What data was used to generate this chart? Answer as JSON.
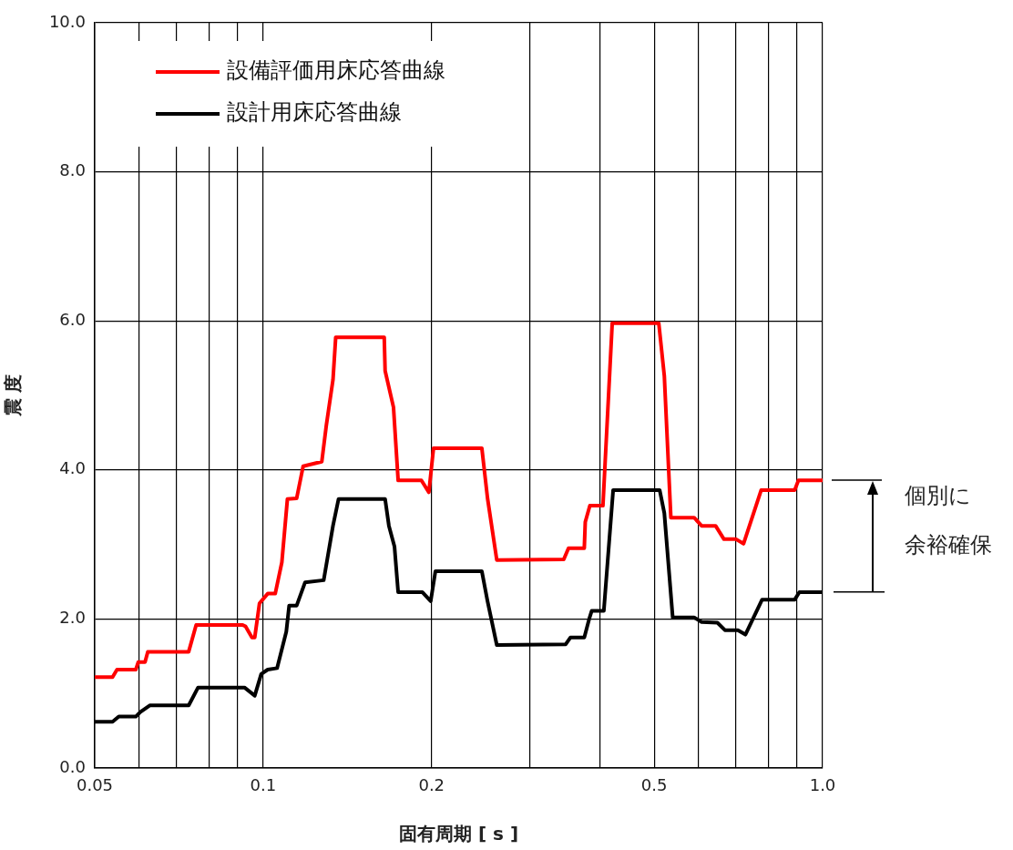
{
  "chart_data": {
    "type": "line",
    "xlabel": "固有周期 [ s ]",
    "ylabel": "震 度",
    "log": "x",
    "grid": true,
    "legend": "top left",
    "xlim": [
      0.05,
      1.0
    ],
    "ylim": [
      0,
      10
    ],
    "xticks": [
      {
        "value": 0.05,
        "label": "0.05"
      },
      {
        "value": 0.06,
        "label": null
      },
      {
        "value": 0.07,
        "label": null
      },
      {
        "value": 0.08,
        "label": null
      },
      {
        "value": 0.09,
        "label": null
      },
      {
        "value": 0.1,
        "label": "0.1"
      },
      {
        "value": 0.2,
        "label": "0.2"
      },
      {
        "value": 0.3,
        "label": null
      },
      {
        "value": 0.4,
        "label": null
      },
      {
        "value": 0.5,
        "label": "0.5"
      },
      {
        "value": 0.6,
        "label": null
      },
      {
        "value": 0.7,
        "label": null
      },
      {
        "value": 0.8,
        "label": null
      },
      {
        "value": 0.9,
        "label": null
      },
      {
        "value": 1.0,
        "label": "1.0"
      }
    ],
    "yticks": [
      {
        "value": 0,
        "label": "0.0"
      },
      {
        "value": 2,
        "label": "2.0"
      },
      {
        "value": 4,
        "label": "4.0"
      },
      {
        "value": 6,
        "label": "6.0"
      },
      {
        "value": 8,
        "label": "8.0"
      },
      {
        "value": 10,
        "label": "10.0"
      }
    ],
    "annotations": [
      "個別に",
      "余裕確保"
    ],
    "series": [
      {
        "name": "設備評価用床応答曲線",
        "color": "#ff0000",
        "x": [
          0.05,
          0.0538,
          0.0548,
          0.0592,
          0.0598,
          0.0615,
          0.0622,
          0.0736,
          0.0759,
          0.0919,
          0.093,
          0.0955,
          0.0966,
          0.0985,
          0.1019,
          0.1051,
          0.108,
          0.1105,
          0.1148,
          0.1179,
          0.1273,
          0.1297,
          0.1333,
          0.1348,
          0.1646,
          0.1652,
          0.171,
          0.1743,
          0.1918,
          0.1978,
          0.2016,
          0.246,
          0.2518,
          0.2616,
          0.3446,
          0.3514,
          0.375,
          0.3765,
          0.3837,
          0.4049,
          0.4207,
          0.5095,
          0.5213,
          0.5355,
          0.5893,
          0.6077,
          0.6437,
          0.6663,
          0.7003,
          0.7222,
          0.7767,
          0.8916,
          0.9053,
          1.0
        ],
        "values": [
          1.22,
          1.22,
          1.32,
          1.32,
          1.42,
          1.42,
          1.56,
          1.56,
          1.92,
          1.92,
          1.9,
          1.75,
          1.75,
          2.21,
          2.34,
          2.34,
          2.76,
          3.61,
          3.62,
          4.05,
          4.11,
          4.6,
          5.21,
          5.78,
          5.78,
          5.33,
          4.84,
          3.86,
          3.86,
          3.7,
          4.29,
          4.29,
          3.62,
          2.79,
          2.8,
          2.95,
          2.95,
          3.3,
          3.52,
          3.52,
          5.97,
          5.97,
          5.26,
          3.36,
          3.36,
          3.25,
          3.25,
          3.07,
          3.07,
          3.01,
          3.73,
          3.73,
          3.86,
          3.86
        ]
      },
      {
        "name": "設計用床応答曲線",
        "color": "#000000",
        "x": [
          0.05,
          0.0538,
          0.0552,
          0.0592,
          0.0603,
          0.0627,
          0.0736,
          0.0765,
          0.0926,
          0.0966,
          0.0992,
          0.1019,
          0.1059,
          0.11,
          0.1113,
          0.1148,
          0.1188,
          0.1283,
          0.1333,
          0.1364,
          0.1652,
          0.1678,
          0.1717,
          0.1743,
          0.1925,
          0.1993,
          0.2032,
          0.246,
          0.2518,
          0.2616,
          0.3474,
          0.3541,
          0.375,
          0.3823,
          0.3867,
          0.4064,
          0.4223,
          0.5114,
          0.5213,
          0.5396,
          0.5893,
          0.6077,
          0.6486,
          0.6689,
          0.7057,
          0.7278,
          0.7796,
          0.8916,
          0.9088,
          1.0
        ],
        "values": [
          0.62,
          0.62,
          0.69,
          0.69,
          0.75,
          0.84,
          0.84,
          1.08,
          1.08,
          0.97,
          1.26,
          1.32,
          1.34,
          1.83,
          2.18,
          2.18,
          2.49,
          2.52,
          3.25,
          3.61,
          3.61,
          3.25,
          2.97,
          2.36,
          2.36,
          2.24,
          2.64,
          2.64,
          2.24,
          1.65,
          1.66,
          1.75,
          1.75,
          1.99,
          2.11,
          2.11,
          3.73,
          3.73,
          3.42,
          2.02,
          2.02,
          1.96,
          1.95,
          1.85,
          1.85,
          1.79,
          2.26,
          2.26,
          2.36,
          2.36
        ]
      }
    ]
  }
}
